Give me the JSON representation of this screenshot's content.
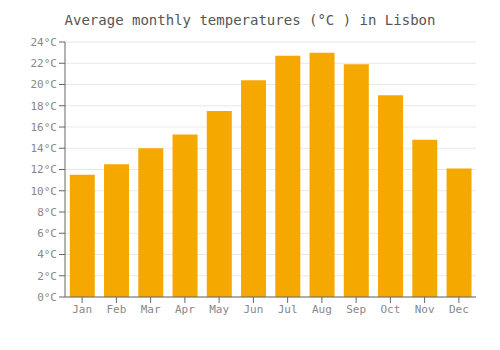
{
  "chart_data": {
    "type": "bar",
    "title": "Average monthly temperatures (°C ) in Lisbon",
    "categories": [
      "Jan",
      "Feb",
      "Mar",
      "Apr",
      "May",
      "Jun",
      "Jul",
      "Aug",
      "Sep",
      "Oct",
      "Nov",
      "Dec"
    ],
    "values": [
      11.5,
      12.5,
      14.0,
      15.3,
      17.5,
      20.4,
      22.7,
      23.0,
      21.9,
      19.0,
      14.8,
      12.1
    ],
    "color": "#F5A800",
    "ylim": [
      0,
      24
    ],
    "yticks": [
      {
        "value": 0,
        "label": "0°C"
      },
      {
        "value": 2,
        "label": "2°C"
      },
      {
        "value": 4,
        "label": "4°C"
      },
      {
        "value": 6,
        "label": "6°C"
      },
      {
        "value": 8,
        "label": "8°C"
      },
      {
        "value": 10,
        "label": "10°C"
      },
      {
        "value": 12,
        "label": "12°C"
      },
      {
        "value": 14,
        "label": "14°C"
      },
      {
        "value": 16,
        "label": "16°C"
      },
      {
        "value": 18,
        "label": "18°C"
      },
      {
        "value": 20,
        "label": "20°C"
      },
      {
        "value": 22,
        "label": "22°C"
      },
      {
        "value": 24,
        "label": "24°C"
      }
    ],
    "grid": true
  }
}
